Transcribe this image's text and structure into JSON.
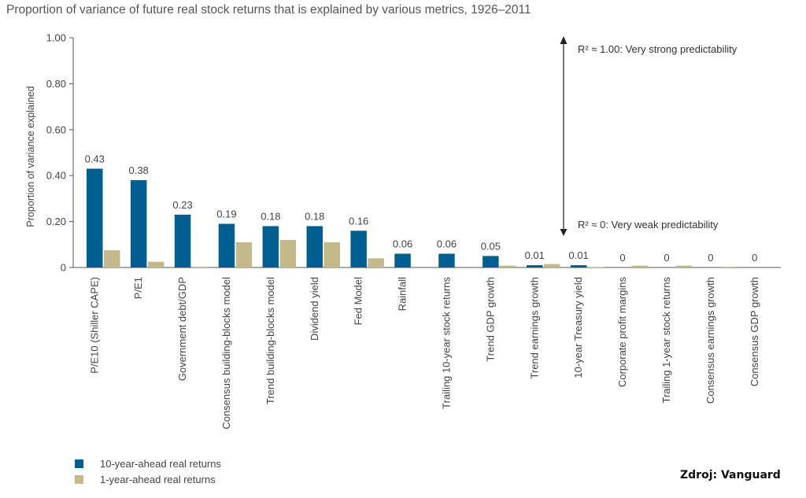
{
  "chart_data": {
    "type": "bar",
    "title": "Proportion of variance of future real stock returns that is explained by various metrics, 1926–2011",
    "ylabel": "Proportion of variance explained",
    "xlabel": "",
    "ylim": [
      0,
      1
    ],
    "yticks": [
      "0",
      "0.20",
      "0.40",
      "0.60",
      "0.80",
      "1.00"
    ],
    "ytick_values": [
      0,
      0.2,
      0.4,
      0.6,
      0.8,
      1.0
    ],
    "categories": [
      "P/E10 (Shiller CAPE)",
      "P/E1",
      "Government debt/GDP",
      "Consensus building-blocks model",
      "Trend building-blocks model",
      "Dividend yield",
      "Fed Model",
      "Rainfall",
      "Trailing 10-year stock returns",
      "Trend GDP growth",
      "Trend earnings growth",
      "10-year Treasury yield",
      "Corporate profit margins",
      "Trailing 1-year stock returns",
      "Consensus earnings growth",
      "Consensus GDP growth"
    ],
    "series": [
      {
        "name": "10-year-ahead real returns",
        "color": "#005f8f",
        "values": [
          0.43,
          0.38,
          0.23,
          0.19,
          0.18,
          0.18,
          0.16,
          0.06,
          0.06,
          0.05,
          0.01,
          0.01,
          0,
          0,
          0,
          0
        ],
        "labels": [
          "0.43",
          "0.38",
          "0.23",
          "0.19",
          "0.18",
          "0.18",
          "0.16",
          "0.06",
          "0.06",
          "0.05",
          "0.01",
          "0.01",
          "0",
          "0",
          "0",
          "0"
        ]
      },
      {
        "name": "1-year-ahead real returns",
        "color": "#c4b98a",
        "values": [
          0.075,
          0.025,
          0.003,
          0.11,
          0.12,
          0.11,
          0.04,
          0,
          0,
          0.008,
          0.015,
          0.002,
          0.008,
          0.008,
          0.003,
          0
        ]
      }
    ],
    "annotations": {
      "top": "R² ≈ 1.00: Very strong predictability",
      "bottom": "R² ≈ 0: Very weak predictability"
    },
    "legend_position": "bottom-left",
    "grid": false
  },
  "source_note": "Zdroj: Vanguard"
}
